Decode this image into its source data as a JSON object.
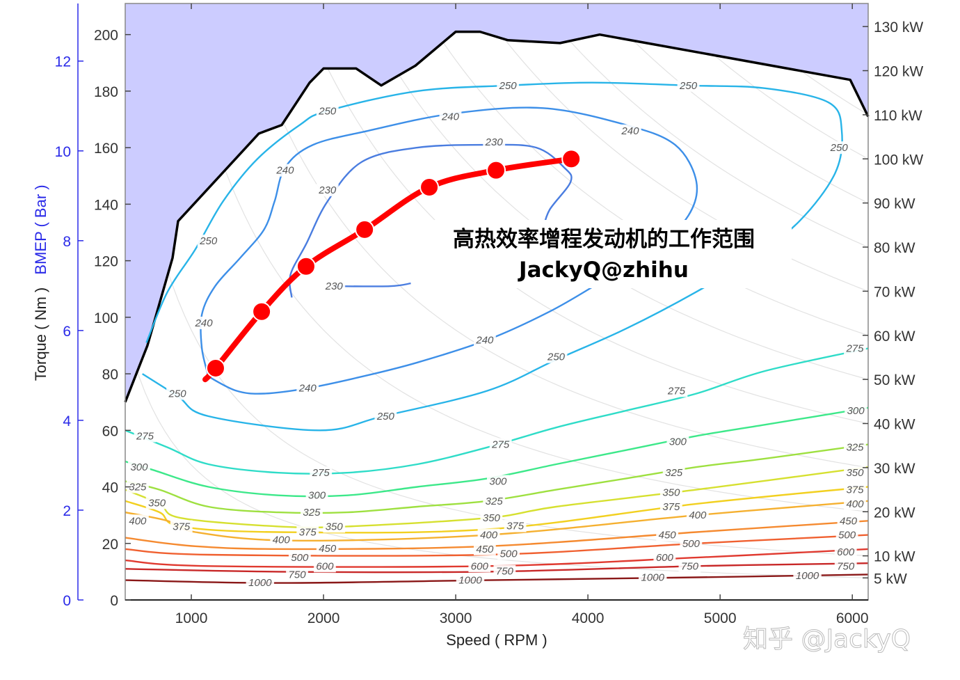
{
  "chart_data": {
    "type": "contour",
    "title": "",
    "xlabel": "Speed ( RPM )",
    "ylabel": "Torque ( Nm )",
    "ylabel_secondary": "BMEP ( Bar )",
    "xlim": [
      500,
      6120
    ],
    "ylim": [
      0,
      211
    ],
    "x_ticks": [
      "1000",
      "2000",
      "3000",
      "4000",
      "5000",
      "6000"
    ],
    "y_ticks": [
      "0",
      "20",
      "40",
      "60",
      "80",
      "100",
      "120",
      "140",
      "160",
      "180",
      "200"
    ],
    "bmep_ticks": [
      "0",
      "2",
      "4",
      "6",
      "8",
      "10",
      "12"
    ],
    "power_ticks": [
      "5 kW",
      "10 kW",
      "20 kW",
      "30 kW",
      "40 kW",
      "50 kW",
      "60 kW",
      "70 kW",
      "80 kW",
      "90 kW",
      "100 kW",
      "110 kW",
      "120 kW",
      "130 kW"
    ],
    "power_tick_values_kw": [
      5,
      10,
      20,
      30,
      40,
      50,
      60,
      70,
      80,
      90,
      100,
      110,
      120,
      130
    ],
    "colors": {
      "full_load_fill": "#ccccff",
      "full_load_line": "#000000",
      "operating_line": "#ff0000",
      "bmep_axis": "#2a2ae8"
    },
    "full_load_curve": [
      [
        500,
        70
      ],
      [
        668,
        90
      ],
      [
        858,
        121
      ],
      [
        900,
        134
      ],
      [
        1511,
        165
      ],
      [
        1684,
        168
      ],
      [
        1895,
        183
      ],
      [
        2000,
        188
      ],
      [
        2247,
        188
      ],
      [
        2437,
        182
      ],
      [
        2695,
        189
      ],
      [
        3000,
        201
      ],
      [
        3184,
        201
      ],
      [
        3395,
        198
      ],
      [
        3789,
        197
      ],
      [
        4089,
        200
      ],
      [
        5984,
        184
      ],
      [
        6120,
        171
      ]
    ],
    "operating_points": [
      [
        1184,
        82
      ],
      [
        1532,
        102
      ],
      [
        1868,
        118
      ],
      [
        2311,
        131
      ],
      [
        2800,
        146
      ],
      [
        3305,
        152
      ],
      [
        3874,
        156
      ]
    ],
    "operating_line_start": [
      1105,
      78
    ],
    "contours": [
      {
        "level": "230",
        "color": "#4a7de0",
        "segments": [
          [
            [
              1760,
              107
            ],
            [
              1750,
              115
            ],
            [
              1870,
              126
            ],
            [
              2030,
              141
            ],
            [
              2290,
              155
            ],
            [
              2710,
              160
            ],
            [
              3240,
              161
            ],
            [
              3610,
              160
            ],
            [
              3820,
              153
            ],
            [
              3870,
              148
            ],
            [
              3710,
              138
            ],
            [
              3660,
              131
            ]
          ],
          [
            [
              2080,
              111
            ],
            [
              2500,
              111
            ],
            [
              2660,
              112
            ]
          ]
        ],
        "labels": [
          [
            3290,
            162
          ],
          [
            2030,
            145
          ],
          [
            2080,
            111
          ]
        ]
      },
      {
        "level": "240",
        "color": "#3d8fe8",
        "segments": [
          [
            [
              1130,
              79
            ],
            [
              1340,
              74
            ],
            [
              1550,
              73
            ],
            [
              1890,
              75
            ],
            [
              2290,
              79
            ],
            [
              2710,
              84
            ],
            [
              3240,
              92
            ],
            [
              3710,
              102
            ],
            [
              4080,
              112
            ],
            [
              4500,
              124
            ],
            [
              4760,
              136
            ],
            [
              4820,
              148
            ],
            [
              4660,
              161
            ],
            [
              4290,
              168
            ],
            [
              3660,
              174
            ],
            [
              2970,
              172
            ],
            [
              2340,
              166
            ],
            [
              1920,
              161
            ],
            [
              1710,
              153
            ],
            [
              1630,
              141
            ],
            [
              1550,
              131
            ],
            [
              1370,
              121
            ],
            [
              1180,
              111
            ],
            [
              1080,
              101
            ],
            [
              1080,
              89
            ],
            [
              1130,
              79
            ]
          ]
        ],
        "labels": [
          [
            1880,
            75
          ],
          [
            3220,
            92
          ],
          [
            4320,
            166
          ],
          [
            2960,
            171
          ],
          [
            1710,
            152
          ],
          [
            1095,
            98
          ]
        ]
      },
      {
        "level": "250",
        "color": "#28b4e8",
        "segments": [
          [
            [
              630,
              80
            ],
            [
              900,
              72
            ],
            [
              1130,
              65
            ],
            [
              1970,
              60
            ],
            [
              2450,
              65
            ],
            [
              3240,
              74
            ],
            [
              3760,
              85
            ],
            [
              4290,
              96
            ],
            [
              4820,
              109
            ],
            [
              5240,
              121
            ],
            [
              5600,
              134
            ],
            [
              5870,
              151
            ],
            [
              5920,
              166
            ],
            [
              5820,
              176
            ],
            [
              5340,
              181
            ],
            [
              4760,
              182
            ],
            [
              4030,
              183
            ],
            [
              3400,
              182
            ],
            [
              2710,
              180
            ],
            [
              2030,
              173
            ],
            [
              1820,
              168
            ],
            [
              1500,
              156
            ],
            [
              1240,
              141
            ],
            [
              1030,
              124
            ],
            [
              820,
              109
            ],
            [
              660,
              91
            ]
          ]
        ],
        "labels": [
          [
            895,
            73
          ],
          [
            1130,
            127
          ],
          [
            2030,
            173
          ],
          [
            3395,
            182
          ],
          [
            4760,
            182
          ],
          [
            5900,
            160
          ],
          [
            3760,
            86
          ],
          [
            2470,
            65
          ]
        ]
      },
      {
        "level": "275",
        "color": "#2fdcc8",
        "segments": [
          [
            [
              500,
              60
            ],
            [
              820,
              54
            ],
            [
              1130,
              48
            ],
            [
              1660,
              45
            ],
            [
              2180,
              45
            ],
            [
              2710,
              48
            ],
            [
              3240,
              54
            ],
            [
              3760,
              61
            ],
            [
              4290,
              67
            ],
            [
              4820,
              73
            ],
            [
              5340,
              81
            ],
            [
              6120,
              89
            ]
          ]
        ],
        "labels": [
          [
            650,
            58
          ],
          [
            1980,
            45
          ],
          [
            3340,
            55
          ],
          [
            4670,
            74
          ],
          [
            6020,
            89
          ]
        ]
      },
      {
        "level": "300",
        "color": "#3de88a",
        "segments": [
          [
            [
              500,
              49
            ],
            [
              710,
              46
            ],
            [
              1130,
              40
            ],
            [
              1660,
              37
            ],
            [
              2180,
              37
            ],
            [
              2710,
              40
            ],
            [
              3240,
              43
            ],
            [
              3760,
              48
            ],
            [
              4290,
              53
            ],
            [
              4820,
              58
            ],
            [
              5340,
              62
            ],
            [
              6120,
              68
            ]
          ]
        ],
        "labels": [
          [
            605,
            47
          ],
          [
            1950,
            37
          ],
          [
            3320,
            42
          ],
          [
            4680,
            56
          ],
          [
            6040,
            67
          ]
        ]
      },
      {
        "level": "325",
        "color": "#9ee040",
        "segments": [
          [
            [
              500,
              42
            ],
            [
              760,
              39
            ],
            [
              1130,
              33
            ],
            [
              1660,
              31
            ],
            [
              2180,
              31
            ],
            [
              2710,
              33
            ],
            [
              3240,
              35
            ],
            [
              3760,
              39
            ],
            [
              4290,
              43
            ],
            [
              4820,
              47
            ],
            [
              5340,
              50
            ],
            [
              6120,
              55
            ]
          ]
        ],
        "labels": [
          [
            550,
            40
          ],
          [
            1910,
            31
          ],
          [
            3290,
            35
          ],
          [
            4650,
            45
          ],
          [
            6020,
            54
          ]
        ]
      },
      {
        "level": "350",
        "color": "#d6e030",
        "segments": [
          [
            [
              500,
              39
            ],
            [
              760,
              34
            ],
            [
              920,
              29
            ],
            [
              1660,
              26
            ],
            [
              2180,
              26
            ],
            [
              3240,
              29
            ],
            [
              3760,
              33
            ],
            [
              4820,
              39
            ],
            [
              6120,
              47
            ]
          ]
        ],
        "labels": [
          [
            540,
            36
          ],
          [
            1880,
            27
          ],
          [
            3270,
            29
          ],
          [
            4630,
            38
          ],
          [
            6020,
            45
          ]
        ]
      },
      {
        "level": "375",
        "color": "#f2d020",
        "segments": [
          [
            [
              500,
              35
            ],
            [
              760,
              31
            ],
            [
              920,
              26
            ],
            [
              1660,
              24
            ],
            [
              3240,
              25
            ],
            [
              4820,
              34
            ],
            [
              6120,
              40
            ]
          ]
        ],
        "labels": [
          [
            525,
            32
          ],
          [
            1880,
            24
          ],
          [
            3250,
            26
          ],
          [
            4630,
            33
          ],
          [
            6020,
            39
          ]
        ]
      },
      {
        "level": "400",
        "color": "#f5b030",
        "segments": [
          [
            [
              500,
              31
            ],
            [
              820,
              28
            ],
            [
              1030,
              24
            ],
            [
              1760,
              21
            ],
            [
              3240,
              23
            ],
            [
              4820,
              30
            ],
            [
              6120,
              35
            ]
          ]
        ],
        "labels": [
          [
            525,
            28
          ],
          [
            1880,
            21
          ],
          [
            3250,
            23
          ],
          [
            4630,
            29
          ],
          [
            6020,
            34
          ]
        ]
      },
      {
        "level": "450",
        "color": "#f58a30",
        "segments": [
          [
            [
              500,
              22
            ],
            [
              1030,
              19
            ],
            [
              1760,
              18
            ],
            [
              3240,
              19
            ],
            [
              4820,
              24
            ],
            [
              6120,
              28
            ]
          ]
        ],
        "labels": [
          [
            1830,
            18
          ],
          [
            3220,
            18
          ],
          [
            4600,
            23
          ],
          [
            5970,
            28
          ]
        ]
      },
      {
        "level": "500",
        "color": "#f06030",
        "segments": [
          [
            [
              500,
              18
            ],
            [
              1130,
              16
            ],
            [
              3240,
              16
            ],
            [
              4820,
              20
            ],
            [
              6120,
              23
            ]
          ]
        ],
        "labels": [
          [
            1820,
            15
          ],
          [
            3200,
            16
          ],
          [
            4580,
            20
          ],
          [
            5960,
            23
          ]
        ]
      },
      {
        "level": "600",
        "color": "#e03a30",
        "segments": [
          [
            [
              500,
              14
            ],
            [
              1130,
              12
            ],
            [
              3240,
              12
            ],
            [
              4820,
              15
            ],
            [
              6120,
              18
            ]
          ]
        ],
        "labels": [
          [
            1810,
            11
          ],
          [
            3180,
            12
          ],
          [
            4580,
            15
          ],
          [
            5950,
            17
          ]
        ]
      },
      {
        "level": "750",
        "color": "#c82828",
        "segments": [
          [
            [
              500,
              11
            ],
            [
              1660,
              10
            ],
            [
              3240,
              10
            ],
            [
              4820,
              12
            ],
            [
              6120,
              13
            ]
          ]
        ],
        "labels": [
          [
            1800,
            9
          ],
          [
            3170,
            10
          ],
          [
            4570,
            11
          ],
          [
            5950,
            12
          ]
        ]
      },
      {
        "level": "1000",
        "color": "#8a1818",
        "segments": [
          [
            [
              500,
              7
            ],
            [
              1660,
              6
            ],
            [
              3240,
              7
            ],
            [
              4820,
              8
            ],
            [
              6120,
              9
            ]
          ]
        ],
        "labels": [
          [
            1720,
            6
          ],
          [
            3110,
            7
          ],
          [
            4490,
            8
          ],
          [
            5860,
            8
          ]
        ]
      }
    ]
  },
  "annotation": {
    "line1": "高热效率增程发动机的工作范围",
    "line2": "JackyQ@zhihu"
  },
  "watermark": "知乎 @JackyQ"
}
